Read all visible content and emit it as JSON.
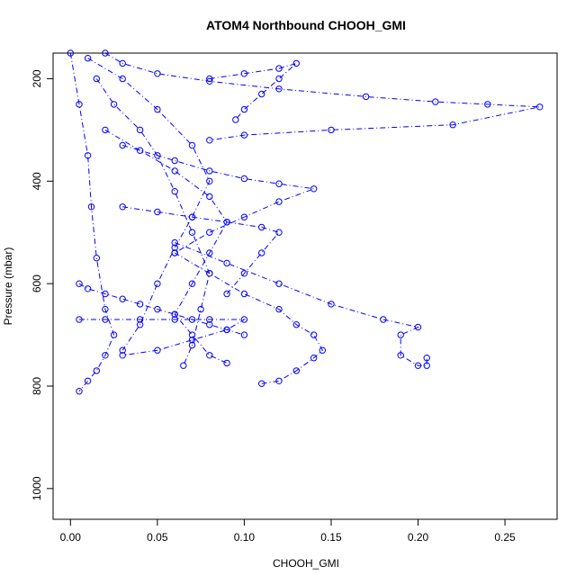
{
  "chart_data": {
    "type": "scatter",
    "title": "ATOM4 Northbound CHOOH_GMI",
    "xlabel": "CHOOH_GMI",
    "ylabel": "Pressure (mbar)",
    "xlim": [
      -0.01,
      0.28
    ],
    "ylim": [
      1060,
      150
    ],
    "y_reversed": true,
    "x_ticks": [
      0.0,
      0.05,
      0.1,
      0.15,
      0.2,
      0.25
    ],
    "x_tick_labels": [
      "0.00",
      "0.05",
      "0.10",
      "0.15",
      "0.20",
      "0.25"
    ],
    "y_ticks": [
      200,
      400,
      600,
      800,
      1000
    ],
    "y_tick_labels": [
      "200",
      "400",
      "600",
      "800",
      "1000"
    ],
    "grid": false,
    "marker": "open-circle",
    "line_style": "dashed-dot",
    "colors": {
      "series": "#0000ff",
      "axis": "#000000",
      "background": "#ffffff"
    },
    "series": [
      {
        "x": [
          0.0,
          0.005,
          0.01,
          0.012,
          0.015,
          0.02,
          0.025,
          0.02,
          0.015,
          0.01,
          0.005
        ],
        "y": [
          150,
          250,
          350,
          450,
          550,
          650,
          700,
          740,
          770,
          790,
          810
        ]
      },
      {
        "x": [
          0.02,
          0.03,
          0.05,
          0.08,
          0.12,
          0.17,
          0.21,
          0.24,
          0.27,
          0.22,
          0.15,
          0.1,
          0.08
        ],
        "y": [
          150,
          170,
          190,
          205,
          220,
          235,
          245,
          250,
          255,
          290,
          300,
          310,
          320
        ]
      },
      {
        "x": [
          0.06,
          0.09,
          0.12,
          0.15,
          0.18,
          0.2,
          0.19,
          0.19,
          0.2,
          0.205,
          0.205
        ],
        "y": [
          520,
          560,
          600,
          640,
          670,
          685,
          700,
          740,
          760,
          760,
          745
        ]
      },
      {
        "x": [
          0.11,
          0.12,
          0.13,
          0.14,
          0.145,
          0.14,
          0.13,
          0.12,
          0.1,
          0.08,
          0.06
        ],
        "y": [
          795,
          790,
          770,
          745,
          730,
          700,
          680,
          650,
          620,
          580,
          540
        ]
      },
      {
        "x": [
          0.02,
          0.04,
          0.06,
          0.08,
          0.09,
          0.08,
          0.07,
          0.06,
          0.07,
          0.08,
          0.09
        ],
        "y": [
          300,
          340,
          380,
          430,
          480,
          540,
          600,
          660,
          700,
          740,
          755
        ]
      },
      {
        "x": [
          0.03,
          0.06,
          0.08,
          0.1,
          0.12,
          0.14,
          0.12,
          0.1,
          0.08,
          0.06
        ],
        "y": [
          330,
          360,
          380,
          395,
          405,
          415,
          440,
          470,
          500,
          540
        ]
      },
      {
        "x": [
          0.01,
          0.03,
          0.05,
          0.07,
          0.08,
          0.07,
          0.06,
          0.05,
          0.04,
          0.03
        ],
        "y": [
          160,
          200,
          260,
          330,
          400,
          470,
          530,
          600,
          680,
          730
        ]
      },
      {
        "x": [
          0.03,
          0.05,
          0.07,
          0.09,
          0.11,
          0.12,
          0.11,
          0.1,
          0.09
        ],
        "y": [
          450,
          460,
          470,
          480,
          490,
          500,
          540,
          580,
          620
        ]
      },
      {
        "x": [
          0.005,
          0.02,
          0.04,
          0.06,
          0.08,
          0.1,
          0.09,
          0.07,
          0.05,
          0.03
        ],
        "y": [
          670,
          670,
          670,
          670,
          670,
          670,
          690,
          710,
          730,
          740
        ]
      },
      {
        "x": [
          0.015,
          0.025,
          0.04,
          0.05,
          0.06,
          0.07,
          0.08,
          0.075,
          0.07,
          0.065
        ],
        "y": [
          200,
          250,
          300,
          350,
          420,
          500,
          580,
          650,
          720,
          760
        ]
      },
      {
        "x": [
          0.08,
          0.1,
          0.12,
          0.13,
          0.12,
          0.11,
          0.1,
          0.095
        ],
        "y": [
          200,
          190,
          180,
          170,
          200,
          230,
          260,
          280
        ]
      },
      {
        "x": [
          0.005,
          0.01,
          0.02,
          0.03,
          0.04,
          0.05,
          0.06,
          0.07,
          0.08,
          0.09,
          0.1
        ],
        "y": [
          600,
          610,
          620,
          630,
          640,
          650,
          660,
          670,
          680,
          690,
          700
        ]
      }
    ]
  }
}
